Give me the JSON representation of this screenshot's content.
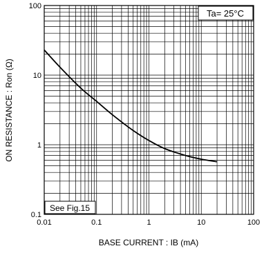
{
  "chart_data": {
    "type": "line",
    "title": "",
    "xlabel": "BASE  CURRENT : IB (mA)",
    "ylabel": "ON  RESISTANCE : Ron (Ω)",
    "x_scale": "log",
    "y_scale": "log",
    "xlim": [
      0.01,
      100
    ],
    "ylim": [
      0.1,
      100
    ],
    "grid": true,
    "x_ticks": [
      "0.01",
      "0.1",
      "1",
      "10",
      "100"
    ],
    "y_ticks": [
      "0.1",
      "1",
      "10",
      "100"
    ],
    "annotations": [
      "Ta= 25°C",
      "See Fig.15"
    ],
    "series": [
      {
        "name": "",
        "x": [
          0.01,
          0.02,
          0.05,
          0.1,
          0.2,
          0.5,
          1,
          2,
          5,
          10,
          20
        ],
        "y": [
          23,
          13,
          6.5,
          4.2,
          2.7,
          1.6,
          1.15,
          0.88,
          0.7,
          0.62,
          0.57
        ]
      }
    ]
  }
}
